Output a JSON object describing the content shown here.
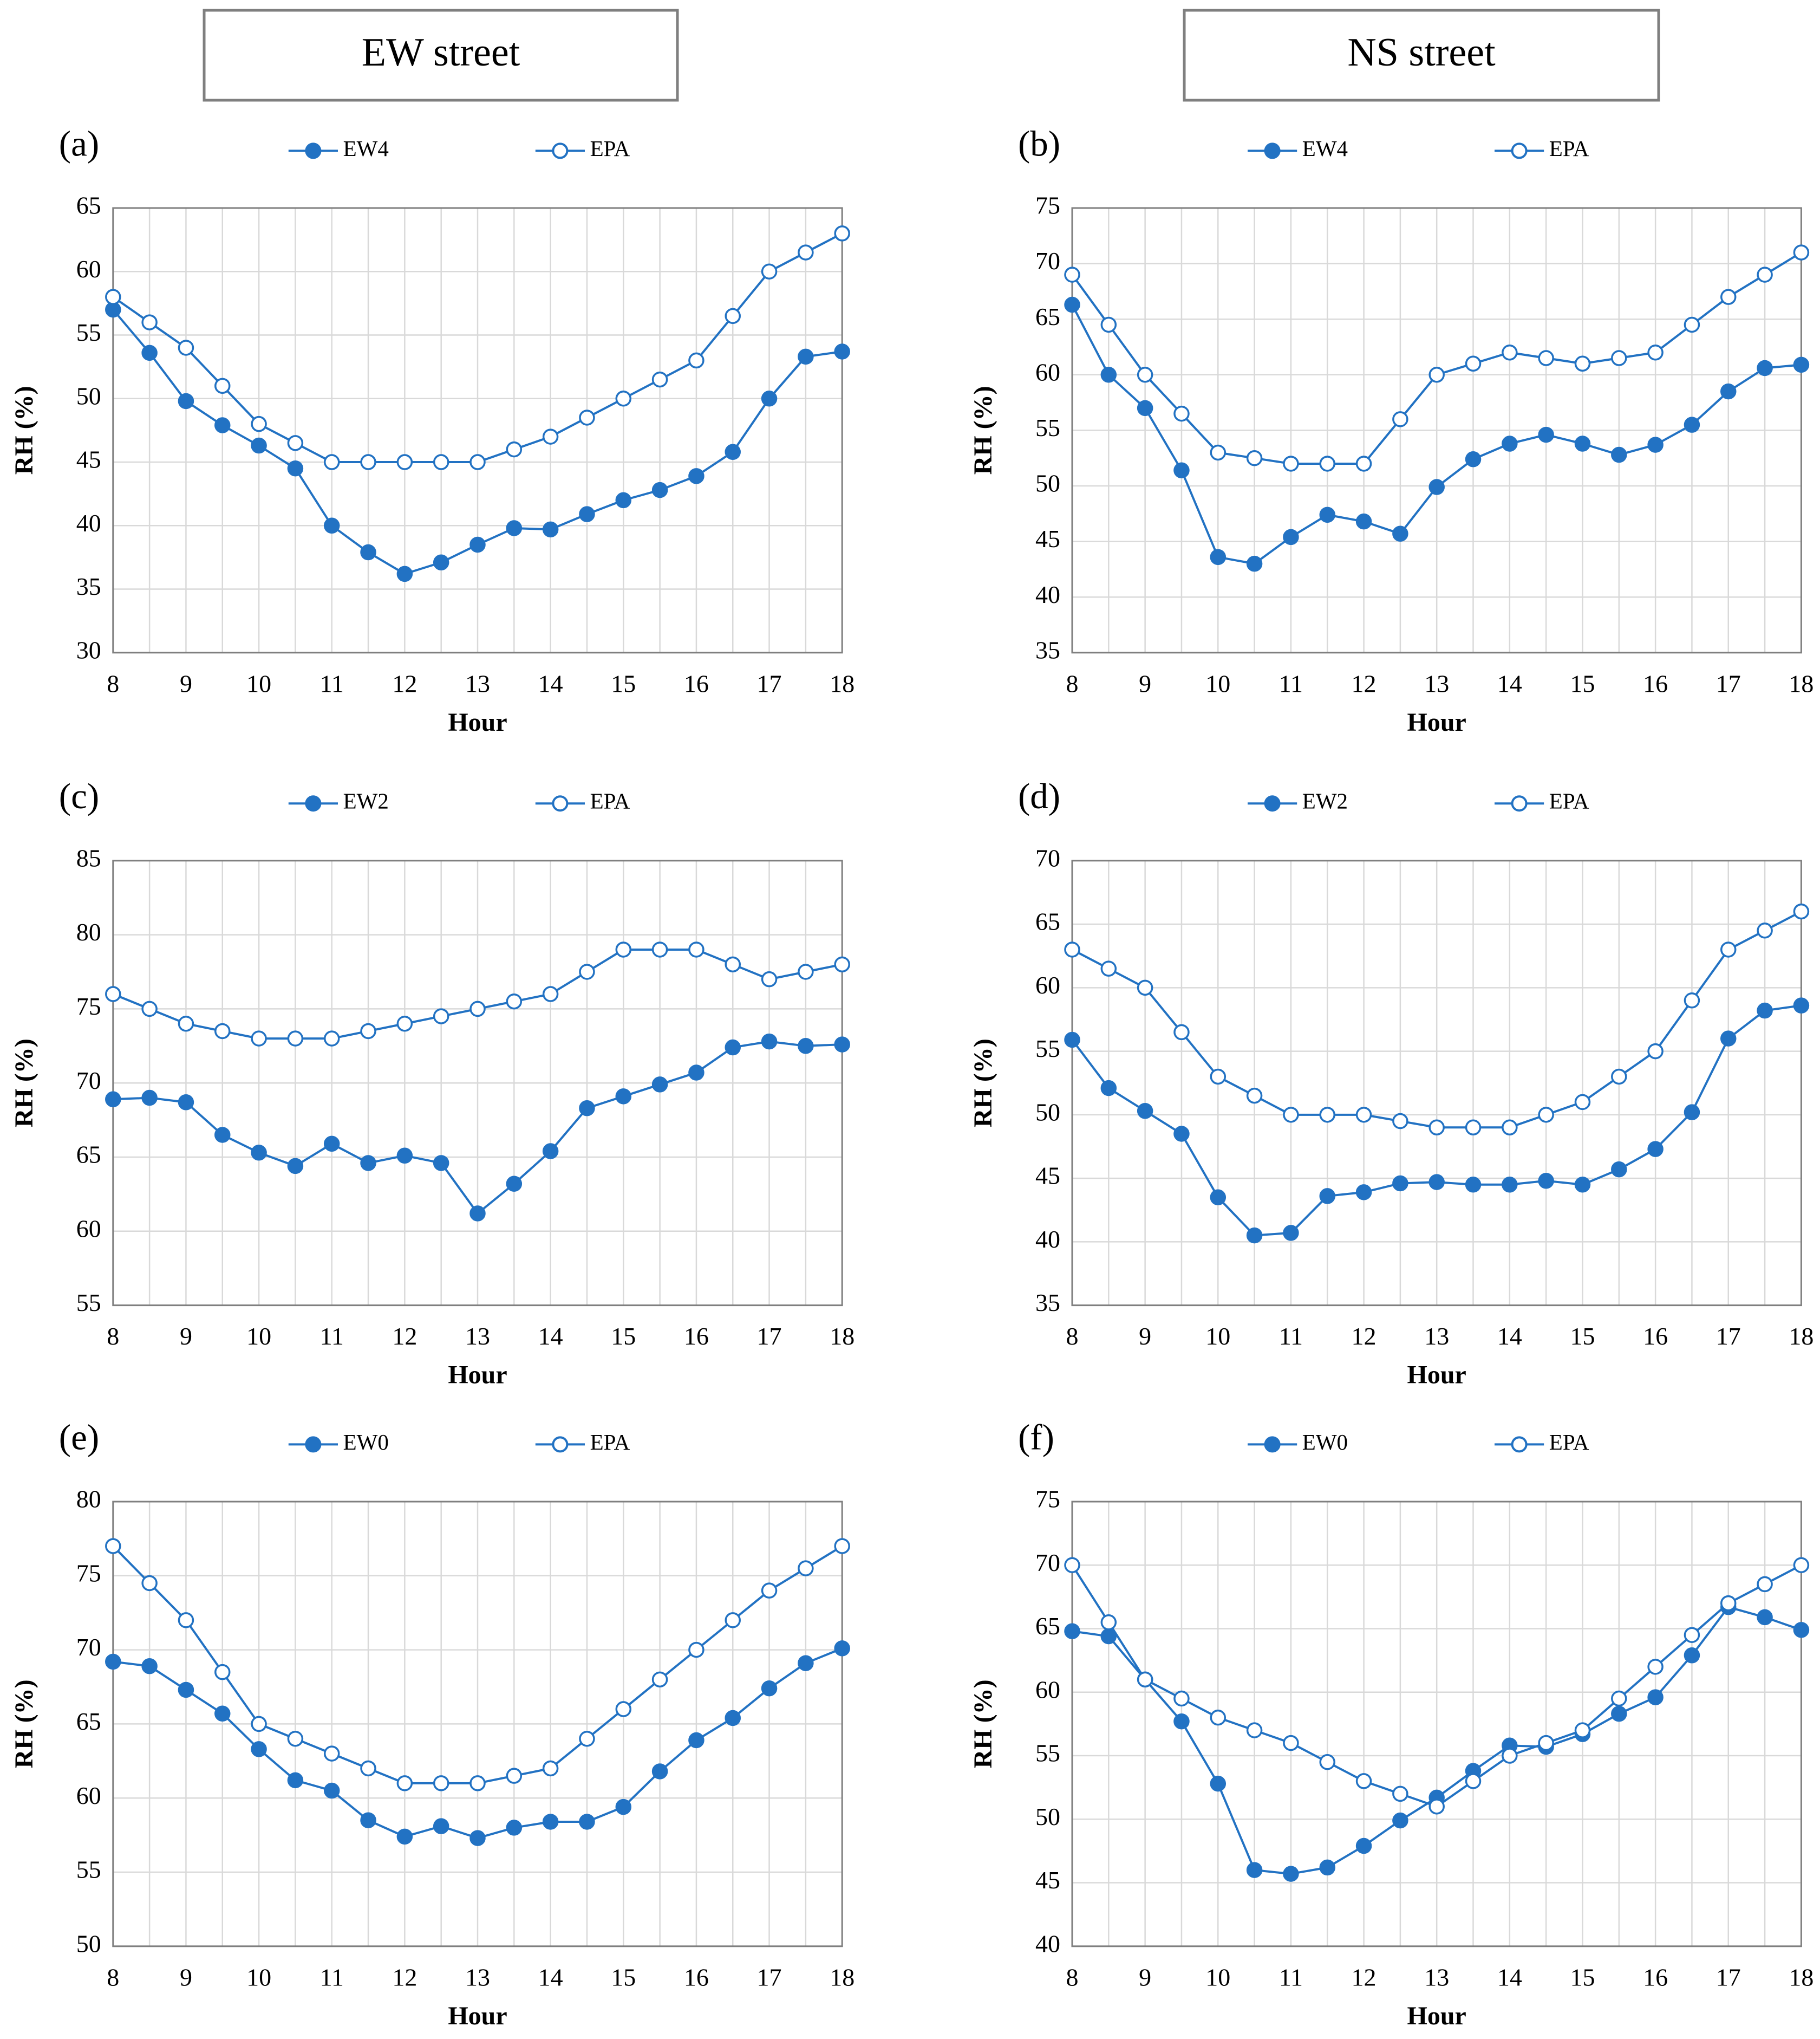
{
  "headers": [
    "EW street",
    "NS street"
  ],
  "chart_data": [
    {
      "type": "line",
      "panel": "(a)",
      "x_label": "Hour",
      "y_label": "RH (%)",
      "legend": "top",
      "grid": true,
      "x": [
        8,
        8.5,
        9,
        9.5,
        10,
        10.5,
        11,
        11.5,
        12,
        12.5,
        13,
        13.5,
        14,
        14.5,
        15,
        15.5,
        16,
        16.5,
        17,
        17.5,
        18
      ],
      "xlim": [
        8,
        18
      ],
      "xticks": [
        8,
        9,
        10,
        11,
        12,
        13,
        14,
        15,
        16,
        17,
        18
      ],
      "ylim": [
        30,
        65
      ],
      "yticks": [
        30,
        35,
        40,
        45,
        50,
        55,
        60,
        65
      ],
      "series": [
        {
          "name": "EW4",
          "color": "#2272c3",
          "marker": "filled",
          "values": [
            57,
            53.6,
            49.8,
            47.9,
            46.3,
            44.5,
            40,
            37.9,
            36.2,
            37.1,
            38.5,
            39.8,
            39.7,
            40.9,
            42,
            42.8,
            43.9,
            45.8,
            50,
            53.3,
            53.7
          ]
        },
        {
          "name": "EPA",
          "color": "#2272c3",
          "marker": "open",
          "values": [
            58,
            56,
            54,
            51,
            48,
            46.5,
            45,
            45,
            45,
            45,
            45,
            46,
            47,
            48.5,
            50,
            51.5,
            53,
            56.5,
            60,
            61.5,
            63
          ]
        }
      ]
    },
    {
      "type": "line",
      "panel": "(b)",
      "x_label": "Hour",
      "y_label": "RH (%)",
      "legend": "top",
      "grid": true,
      "x": [
        8,
        8.5,
        9,
        9.5,
        10,
        10.5,
        11,
        11.5,
        12,
        12.5,
        13,
        13.5,
        14,
        14.5,
        15,
        15.5,
        16,
        16.5,
        17,
        17.5,
        18
      ],
      "xlim": [
        8,
        18
      ],
      "xticks": [
        8,
        9,
        10,
        11,
        12,
        13,
        14,
        15,
        16,
        17,
        18
      ],
      "ylim": [
        35,
        75
      ],
      "yticks": [
        35,
        40,
        45,
        50,
        55,
        60,
        65,
        70,
        75
      ],
      "series": [
        {
          "name": "EW4",
          "color": "#2272c3",
          "marker": "filled",
          "values": [
            66.3,
            60,
            57,
            51.4,
            43.6,
            43,
            45.4,
            47.4,
            46.8,
            45.7,
            49.9,
            52.4,
            53.8,
            54.6,
            53.8,
            52.8,
            53.7,
            55.5,
            58.5,
            60.6,
            60.9
          ]
        },
        {
          "name": "EPA",
          "color": "#2272c3",
          "marker": "open",
          "values": [
            69,
            64.5,
            60,
            56.5,
            53,
            52.5,
            52,
            52,
            52,
            56,
            60,
            61,
            62,
            61.5,
            61,
            61.5,
            62,
            64.5,
            67,
            69,
            71
          ]
        }
      ]
    },
    {
      "type": "line",
      "panel": "(c)",
      "x_label": "Hour",
      "y_label": "RH (%)",
      "legend": "top",
      "grid": true,
      "x": [
        8,
        8.5,
        9,
        9.5,
        10,
        10.5,
        11,
        11.5,
        12,
        12.5,
        13,
        13.5,
        14,
        14.5,
        15,
        15.5,
        16,
        16.5,
        17,
        17.5,
        18
      ],
      "xlim": [
        8,
        18
      ],
      "xticks": [
        8,
        9,
        10,
        11,
        12,
        13,
        14,
        15,
        16,
        17,
        18
      ],
      "ylim": [
        55,
        85
      ],
      "yticks": [
        55,
        60,
        65,
        70,
        75,
        80,
        85
      ],
      "series": [
        {
          "name": "EW2",
          "color": "#2272c3",
          "marker": "filled",
          "values": [
            68.9,
            69,
            68.7,
            66.5,
            65.3,
            64.4,
            65.9,
            64.6,
            65.1,
            64.6,
            61.2,
            63.2,
            65.4,
            68.3,
            69.1,
            69.9,
            70.7,
            72.4,
            72.8,
            72.5,
            72.6
          ]
        },
        {
          "name": "EPA",
          "color": "#2272c3",
          "marker": "open",
          "values": [
            76,
            75,
            74,
            73.5,
            73,
            73,
            73,
            73.5,
            74,
            74.5,
            75,
            75.5,
            76,
            77.5,
            79,
            79,
            79,
            78,
            77,
            77.5,
            78
          ]
        }
      ]
    },
    {
      "type": "line",
      "panel": "(d)",
      "x_label": "Hour",
      "y_label": "RH (%)",
      "legend": "top",
      "grid": true,
      "x": [
        8,
        8.5,
        9,
        9.5,
        10,
        10.5,
        11,
        11.5,
        12,
        12.5,
        13,
        13.5,
        14,
        14.5,
        15,
        15.5,
        16,
        16.5,
        17,
        17.5,
        18
      ],
      "xlim": [
        8,
        18
      ],
      "xticks": [
        8,
        9,
        10,
        11,
        12,
        13,
        14,
        15,
        16,
        17,
        18
      ],
      "ylim": [
        35,
        70
      ],
      "yticks": [
        35,
        40,
        45,
        50,
        55,
        60,
        65,
        70
      ],
      "series": [
        {
          "name": "EW2",
          "color": "#2272c3",
          "marker": "filled",
          "values": [
            55.9,
            52.1,
            50.3,
            48.5,
            43.5,
            40.5,
            40.7,
            43.6,
            43.9,
            44.6,
            44.7,
            44.5,
            44.5,
            44.8,
            44.5,
            45.7,
            47.3,
            50.2,
            56,
            58.2,
            58.6
          ]
        },
        {
          "name": "EPA",
          "color": "#2272c3",
          "marker": "open",
          "values": [
            63,
            61.5,
            60,
            56.5,
            53,
            51.5,
            50,
            50,
            50,
            49.5,
            49,
            49,
            49,
            50,
            51,
            53,
            55,
            59,
            63,
            64.5,
            66
          ]
        }
      ]
    },
    {
      "type": "line",
      "panel": "(e)",
      "x_label": "Hour",
      "y_label": "RH (%)",
      "legend": "top",
      "grid": true,
      "x": [
        8,
        8.5,
        9,
        9.5,
        10,
        10.5,
        11,
        11.5,
        12,
        12.5,
        13,
        13.5,
        14,
        14.5,
        15,
        15.5,
        16,
        16.5,
        17,
        17.5,
        18
      ],
      "xlim": [
        8,
        18
      ],
      "xticks": [
        8,
        9,
        10,
        11,
        12,
        13,
        14,
        15,
        16,
        17,
        18
      ],
      "ylim": [
        50,
        80
      ],
      "yticks": [
        50,
        55,
        60,
        65,
        70,
        75,
        80
      ],
      "series": [
        {
          "name": "EW0",
          "color": "#2272c3",
          "marker": "filled",
          "values": [
            69.2,
            68.9,
            67.3,
            65.7,
            63.3,
            61.2,
            60.5,
            58.5,
            57.4,
            58.1,
            57.3,
            58,
            58.4,
            58.4,
            59.4,
            61.8,
            63.9,
            65.4,
            67.4,
            69.1,
            70.1
          ]
        },
        {
          "name": "EPA",
          "color": "#2272c3",
          "marker": "open",
          "values": [
            77,
            74.5,
            72,
            68.5,
            65,
            64,
            63,
            62,
            61,
            61,
            61,
            61.5,
            62,
            64,
            66,
            68,
            70,
            72,
            74,
            75.5,
            77
          ]
        }
      ]
    },
    {
      "type": "line",
      "panel": "(f)",
      "x_label": "Hour",
      "y_label": "RH (%)",
      "legend": "top",
      "grid": true,
      "x": [
        8,
        8.5,
        9,
        9.5,
        10,
        10.5,
        11,
        11.5,
        12,
        12.5,
        13,
        13.5,
        14,
        14.5,
        15,
        15.5,
        16,
        16.5,
        17,
        17.5,
        18
      ],
      "xlim": [
        8,
        18
      ],
      "xticks": [
        8,
        9,
        10,
        11,
        12,
        13,
        14,
        15,
        16,
        17,
        18
      ],
      "ylim": [
        40,
        75
      ],
      "yticks": [
        40,
        45,
        50,
        55,
        60,
        65,
        70,
        75
      ],
      "series": [
        {
          "name": "EW0",
          "color": "#2272c3",
          "marker": "filled",
          "values": [
            64.8,
            64.4,
            61,
            57.7,
            52.8,
            46,
            45.7,
            46.2,
            47.9,
            49.9,
            51.7,
            53.8,
            55.8,
            55.7,
            56.7,
            58.3,
            59.6,
            62.9,
            66.7,
            65.9,
            64.9
          ]
        },
        {
          "name": "EPA",
          "color": "#2272c3",
          "marker": "open",
          "values": [
            70,
            65.5,
            61,
            59.5,
            58,
            57,
            56,
            54.5,
            53,
            52,
            51,
            53,
            55,
            56,
            57,
            59.5,
            62,
            64.5,
            67,
            68.5,
            70
          ]
        }
      ]
    }
  ]
}
